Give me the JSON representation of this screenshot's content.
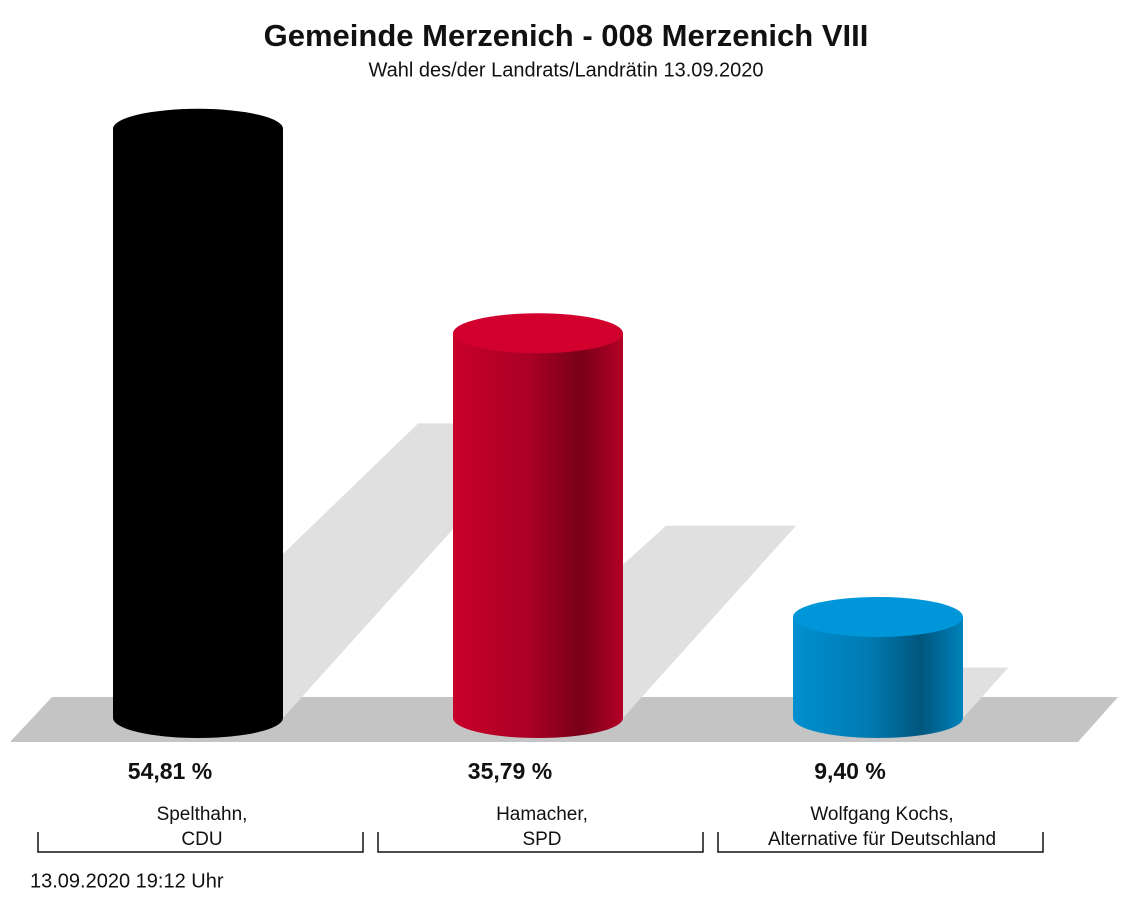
{
  "chart_data": {
    "type": "bar",
    "title": "Gemeinde Merzenich - 008 Merzenich VIII",
    "subtitle": "Wahl des/der Landrats/Landrätin 13.09.2020",
    "categories": [
      [
        "Spelthahn,",
        "CDU"
      ],
      [
        "Hamacher,",
        "SPD"
      ],
      [
        "Wolfgang Kochs,",
        "Alternative für Deutschland"
      ]
    ],
    "values": [
      54.81,
      35.79,
      9.4
    ],
    "value_labels": [
      "54,81 %",
      "35,79 %",
      "9,40 %"
    ],
    "colors": [
      "#000000",
      "#c8002a",
      "#0090d0"
    ],
    "footnote": "13.09.2020 19:12 Uhr"
  }
}
